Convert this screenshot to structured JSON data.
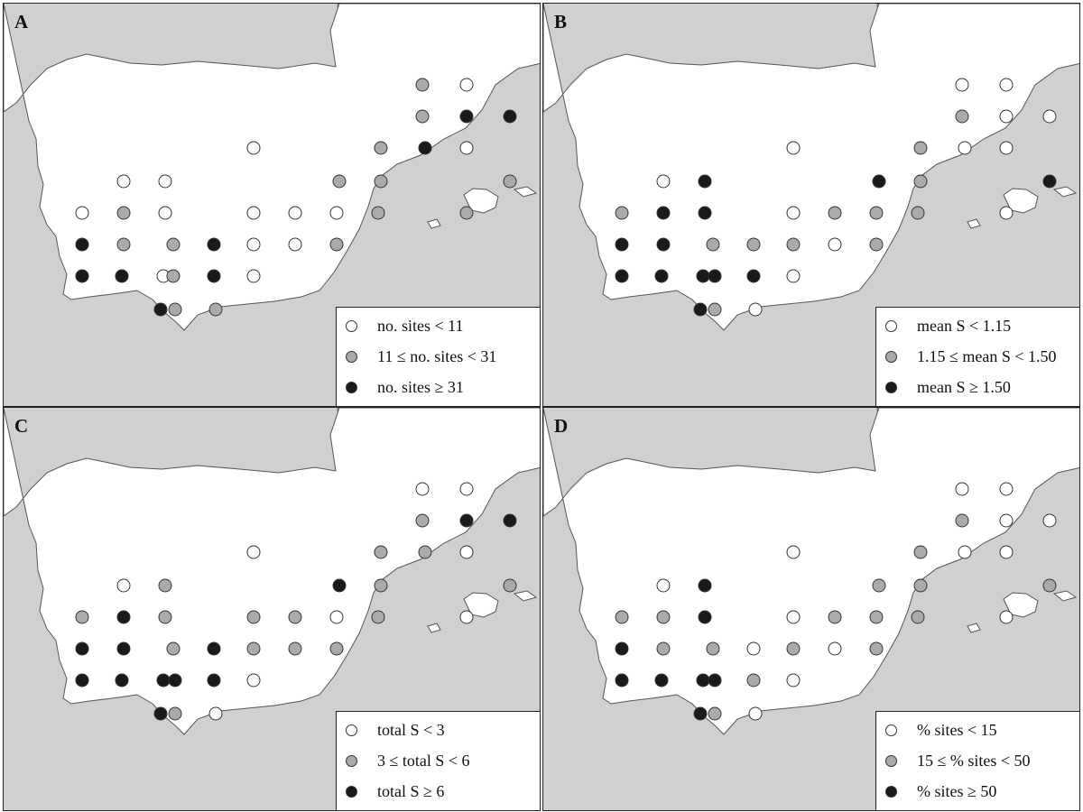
{
  "colors": {
    "sea": "#d0d0d0",
    "land": "#ffffff",
    "coast": "#555555",
    "low": "#ffffff",
    "mid": "#aaaaaa",
    "high": "#1a1a1a"
  },
  "panels": [
    {
      "label": "A",
      "legend": [
        "no. sites < 11",
        "11 ≤ no. sites < 31",
        "no. sites ≥ 31"
      ],
      "points": [
        [
          464,
          90,
          1
        ],
        [
          513,
          90,
          0
        ],
        [
          464,
          125,
          1
        ],
        [
          513,
          125,
          2
        ],
        [
          561,
          125,
          2
        ],
        [
          277,
          160,
          0
        ],
        [
          418,
          160,
          1
        ],
        [
          467,
          160,
          2
        ],
        [
          513,
          160,
          0
        ],
        [
          133,
          197,
          0
        ],
        [
          179,
          197,
          0
        ],
        [
          372,
          197,
          1
        ],
        [
          418,
          197,
          1
        ],
        [
          561,
          197,
          1
        ],
        [
          87,
          232,
          0
        ],
        [
          133,
          232,
          1
        ],
        [
          179,
          232,
          0
        ],
        [
          277,
          232,
          0
        ],
        [
          323,
          232,
          0
        ],
        [
          369,
          232,
          0
        ],
        [
          415,
          232,
          1
        ],
        [
          513,
          232,
          1
        ],
        [
          87,
          267,
          2
        ],
        [
          133,
          267,
          1
        ],
        [
          188,
          267,
          1
        ],
        [
          233,
          267,
          2
        ],
        [
          277,
          267,
          0
        ],
        [
          323,
          267,
          0
        ],
        [
          369,
          267,
          1
        ],
        [
          87,
          302,
          2
        ],
        [
          131,
          302,
          2
        ],
        [
          177,
          302,
          0
        ],
        [
          188,
          302,
          1
        ],
        [
          233,
          302,
          2
        ],
        [
          277,
          302,
          0
        ],
        [
          174,
          339,
          2
        ],
        [
          190,
          339,
          1
        ],
        [
          235,
          339,
          1
        ]
      ]
    },
    {
      "label": "B",
      "legend": [
        "mean S < 1.15",
        "1.15 ≤ mean S < 1.50",
        "mean S ≥ 1.50"
      ],
      "points": [
        [
          464,
          90,
          0
        ],
        [
          513,
          90,
          0
        ],
        [
          464,
          125,
          1
        ],
        [
          513,
          125,
          0
        ],
        [
          561,
          125,
          0
        ],
        [
          277,
          160,
          0
        ],
        [
          418,
          160,
          1
        ],
        [
          467,
          160,
          0
        ],
        [
          513,
          160,
          0
        ],
        [
          133,
          197,
          0
        ],
        [
          179,
          197,
          2
        ],
        [
          372,
          197,
          2
        ],
        [
          418,
          197,
          1
        ],
        [
          561,
          197,
          2
        ],
        [
          87,
          232,
          1
        ],
        [
          133,
          232,
          2
        ],
        [
          179,
          232,
          2
        ],
        [
          277,
          232,
          0
        ],
        [
          323,
          232,
          1
        ],
        [
          369,
          232,
          1
        ],
        [
          415,
          232,
          1
        ],
        [
          513,
          232,
          0
        ],
        [
          87,
          267,
          2
        ],
        [
          133,
          267,
          2
        ],
        [
          188,
          267,
          1
        ],
        [
          233,
          267,
          1
        ],
        [
          277,
          267,
          1
        ],
        [
          323,
          267,
          0
        ],
        [
          369,
          267,
          1
        ],
        [
          87,
          302,
          2
        ],
        [
          131,
          302,
          2
        ],
        [
          177,
          302,
          2
        ],
        [
          190,
          302,
          2
        ],
        [
          233,
          302,
          2
        ],
        [
          277,
          302,
          0
        ],
        [
          174,
          339,
          2
        ],
        [
          190,
          339,
          1
        ],
        [
          235,
          339,
          0
        ]
      ]
    },
    {
      "label": "C",
      "legend": [
        "total S < 3",
        "3 ≤ total S < 6",
        "total S ≥ 6"
      ],
      "points": [
        [
          464,
          90,
          0
        ],
        [
          513,
          90,
          0
        ],
        [
          464,
          125,
          1
        ],
        [
          513,
          125,
          2
        ],
        [
          561,
          125,
          2
        ],
        [
          277,
          160,
          0
        ],
        [
          418,
          160,
          1
        ],
        [
          467,
          160,
          1
        ],
        [
          513,
          160,
          0
        ],
        [
          133,
          197,
          0
        ],
        [
          179,
          197,
          1
        ],
        [
          372,
          197,
          2
        ],
        [
          418,
          197,
          1
        ],
        [
          561,
          197,
          1
        ],
        [
          87,
          232,
          1
        ],
        [
          133,
          232,
          2
        ],
        [
          179,
          232,
          1
        ],
        [
          277,
          232,
          1
        ],
        [
          323,
          232,
          1
        ],
        [
          369,
          232,
          0
        ],
        [
          415,
          232,
          1
        ],
        [
          513,
          232,
          0
        ],
        [
          87,
          267,
          2
        ],
        [
          133,
          267,
          2
        ],
        [
          188,
          267,
          1
        ],
        [
          233,
          267,
          2
        ],
        [
          277,
          267,
          1
        ],
        [
          323,
          267,
          1
        ],
        [
          369,
          267,
          1
        ],
        [
          87,
          302,
          2
        ],
        [
          131,
          302,
          2
        ],
        [
          177,
          302,
          2
        ],
        [
          190,
          302,
          2
        ],
        [
          233,
          302,
          2
        ],
        [
          277,
          302,
          0
        ],
        [
          174,
          339,
          2
        ],
        [
          190,
          339,
          1
        ],
        [
          235,
          339,
          0
        ]
      ]
    },
    {
      "label": "D",
      "legend": [
        "% sites < 15",
        "15 ≤ % sites < 50",
        "% sites ≥ 50"
      ],
      "points": [
        [
          464,
          90,
          0
        ],
        [
          513,
          90,
          0
        ],
        [
          464,
          125,
          1
        ],
        [
          513,
          125,
          0
        ],
        [
          561,
          125,
          0
        ],
        [
          277,
          160,
          0
        ],
        [
          418,
          160,
          1
        ],
        [
          467,
          160,
          0
        ],
        [
          513,
          160,
          0
        ],
        [
          133,
          197,
          0
        ],
        [
          179,
          197,
          2
        ],
        [
          372,
          197,
          1
        ],
        [
          418,
          197,
          1
        ],
        [
          561,
          197,
          1
        ],
        [
          87,
          232,
          1
        ],
        [
          133,
          232,
          1
        ],
        [
          179,
          232,
          2
        ],
        [
          277,
          232,
          0
        ],
        [
          323,
          232,
          1
        ],
        [
          369,
          232,
          1
        ],
        [
          415,
          232,
          1
        ],
        [
          513,
          232,
          0
        ],
        [
          87,
          267,
          2
        ],
        [
          133,
          267,
          1
        ],
        [
          188,
          267,
          1
        ],
        [
          233,
          267,
          0
        ],
        [
          277,
          267,
          1
        ],
        [
          323,
          267,
          0
        ],
        [
          369,
          267,
          1
        ],
        [
          87,
          302,
          2
        ],
        [
          131,
          302,
          2
        ],
        [
          177,
          302,
          2
        ],
        [
          190,
          302,
          2
        ],
        [
          233,
          302,
          1
        ],
        [
          277,
          302,
          0
        ],
        [
          174,
          339,
          2
        ],
        [
          190,
          339,
          1
        ],
        [
          235,
          339,
          0
        ]
      ]
    }
  ]
}
